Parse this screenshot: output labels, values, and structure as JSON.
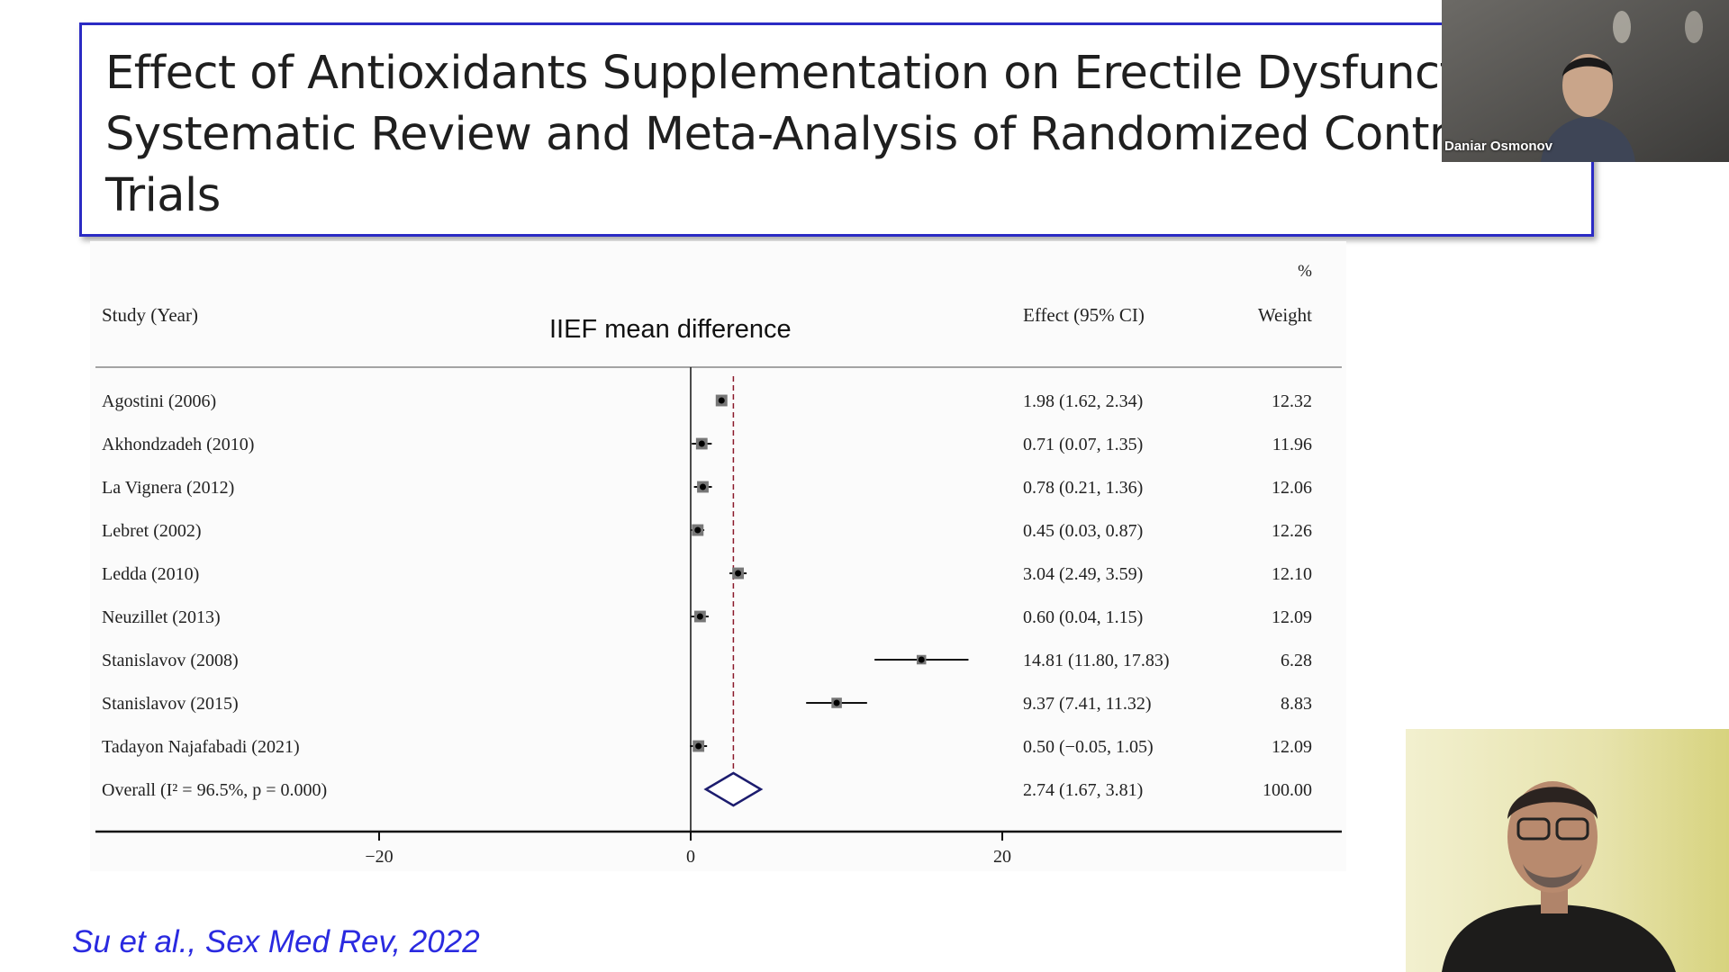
{
  "slide": {
    "title_lines": [
      "Effect of Antioxidants Supplementation on Erectile Dysfuncti",
      "Systematic Review and Meta-Analysis of Randomized Contro",
      "Trials"
    ],
    "subtitle": "IIEF mean difference",
    "citation": "Su et al., Sex Med Rev, 2022",
    "colors": {
      "title_border": "#2b2bc4",
      "citation": "#2a2ae0",
      "diamond": "#1c1c6e",
      "dashed_line": "#8b1a2b"
    }
  },
  "forest_plot": {
    "header": {
      "study_col": "Study (Year)",
      "effect_col": "Effect (95% CI)",
      "weight_pct": "%",
      "weight_col": "Weight"
    },
    "overall_label": "Overall (I² = 96.5%, p = 0.000)",
    "overall_effect_text": "2.74 (1.67, 3.81)",
    "overall_weight_text": "100.00"
  },
  "chart_data": {
    "type": "forest",
    "xlim": [
      -30,
      40
    ],
    "x_ticks": [
      -20,
      0,
      20
    ],
    "x_tick_labels": [
      "−20",
      "0",
      "20"
    ],
    "overall": {
      "est": 2.74,
      "lo": 1.67,
      "hi": 3.81
    },
    "studies": [
      {
        "label": "Agostini (2006)",
        "est": 1.98,
        "lo": 1.62,
        "hi": 2.34,
        "effect": "1.98 (1.62, 2.34)",
        "weight": "12.32"
      },
      {
        "label": "Akhondzadeh (2010)",
        "est": 0.71,
        "lo": 0.07,
        "hi": 1.35,
        "effect": "0.71 (0.07, 1.35)",
        "weight": "11.96"
      },
      {
        "label": "La Vignera (2012)",
        "est": 0.78,
        "lo": 0.21,
        "hi": 1.36,
        "effect": "0.78 (0.21, 1.36)",
        "weight": "12.06"
      },
      {
        "label": "Lebret (2002)",
        "est": 0.45,
        "lo": 0.03,
        "hi": 0.87,
        "effect": "0.45 (0.03, 0.87)",
        "weight": "12.26"
      },
      {
        "label": "Ledda (2010)",
        "est": 3.04,
        "lo": 2.49,
        "hi": 3.59,
        "effect": "3.04 (2.49, 3.59)",
        "weight": "12.10"
      },
      {
        "label": "Neuzillet (2013)",
        "est": 0.6,
        "lo": 0.04,
        "hi": 1.15,
        "effect": "0.60 (0.04, 1.15)",
        "weight": "12.09"
      },
      {
        "label": "Stanislavov (2008)",
        "est": 14.81,
        "lo": 11.8,
        "hi": 17.83,
        "effect": "14.81 (11.80, 17.83)",
        "weight": "6.28"
      },
      {
        "label": "Stanislavov (2015)",
        "est": 9.37,
        "lo": 7.41,
        "hi": 11.32,
        "effect": "9.37 (7.41, 11.32)",
        "weight": "8.83"
      },
      {
        "label": "Tadayon Najafabadi (2021)",
        "est": 0.5,
        "lo": -0.05,
        "hi": 1.05,
        "effect": "0.50 (−0.05, 1.05)",
        "weight": "12.09"
      }
    ]
  },
  "video": {
    "participant_top_name": "Daniar Osmonov"
  }
}
